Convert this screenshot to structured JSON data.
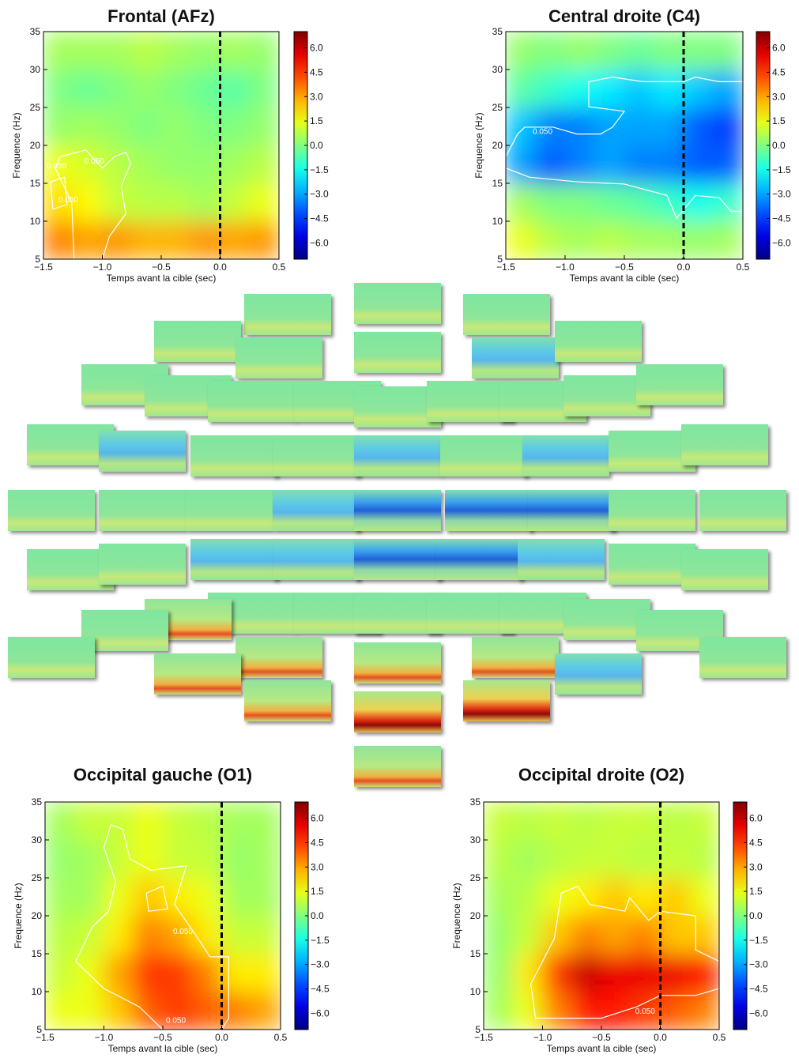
{
  "chart_data": [
    {
      "type": "heatmap",
      "title": "Frontal (AFz)",
      "xlabel": "Temps avant la cible (sec)",
      "ylabel": "Frequence (Hz)",
      "xlim": [
        -1.5,
        0.5
      ],
      "ylim": [
        5,
        35
      ],
      "xticks": [
        {
          "value": -1.5,
          "label": "−1.5"
        },
        {
          "value": -1,
          "label": "−1.0"
        },
        {
          "value": -0.5,
          "label": "−0.5"
        },
        {
          "value": 0,
          "label": "0.0"
        },
        0.5
      ],
      "yticks": [
        5,
        10,
        15,
        20,
        25,
        30,
        35
      ],
      "xbins": [
        -1.5,
        -1.25,
        -1,
        -0.75,
        -0.5,
        -0.25,
        0,
        0.25,
        0.5
      ],
      "ybins": [
        5,
        10,
        15,
        20,
        25,
        30,
        35
      ],
      "z": [
        [
          3.5,
          3,
          3.2,
          2.8,
          2.8,
          3.2,
          3,
          3.2
        ],
        [
          2.2,
          1.8,
          1,
          0.8,
          0.8,
          0.5,
          1,
          1.5
        ],
        [
          1.5,
          1.2,
          0.8,
          0.5,
          0.3,
          0.3,
          0.5,
          0.8
        ],
        [
          0.3,
          0.5,
          0.3,
          0,
          0.3,
          0,
          0,
          0.3
        ],
        [
          0,
          -0.3,
          0,
          0.3,
          0,
          -0.3,
          -0.5,
          0
        ],
        [
          0.5,
          0.5,
          0.5,
          0.8,
          0.5,
          0.3,
          0.5,
          0.3
        ]
      ],
      "clim": [
        -7,
        7
      ],
      "colormap": "jet",
      "cticks": [
        {
          "value": 6,
          "label": "6.0"
        },
        4.5,
        {
          "value": 3,
          "label": "3.0"
        },
        1.5,
        {
          "value": 0,
          "label": "0.0"
        },
        {
          "value": -1.5,
          "label": "−1.5"
        },
        {
          "value": -3,
          "label": "−3.0"
        },
        {
          "value": -4.5,
          "label": "−4.5"
        },
        {
          "value": -6,
          "label": "−6.0"
        }
      ],
      "vline": 0,
      "contour_label": "0.050"
    },
    {
      "type": "heatmap",
      "title": "Central droite (C4)",
      "xlabel": "Temps avant la cible (sec)",
      "ylabel": "Frequence (Hz)",
      "xlim": [
        -1.5,
        0.5
      ],
      "ylim": [
        5,
        35
      ],
      "xticks": [
        {
          "value": -1.5,
          "label": "−1.5"
        },
        {
          "value": -1,
          "label": "−1.0"
        },
        {
          "value": -0.5,
          "label": "−0.5"
        },
        {
          "value": 0,
          "label": "0.0"
        },
        0.5
      ],
      "yticks": [
        5,
        10,
        15,
        20,
        25,
        30,
        35
      ],
      "xbins": [
        -1.5,
        -1.25,
        -1,
        -0.75,
        -0.5,
        -0.25,
        0,
        0.25,
        0.5
      ],
      "ybins": [
        5,
        10,
        15,
        20,
        25,
        30,
        35
      ],
      "z": [
        [
          1.5,
          0.8,
          0.5,
          0.8,
          0.5,
          0.5,
          0.3,
          0.5
        ],
        [
          0.5,
          0,
          0,
          -0.3,
          -0.5,
          -1,
          -1.5,
          -1
        ],
        [
          -3,
          -4,
          -3.5,
          -3,
          -3.5,
          -3.5,
          -4,
          -4
        ],
        [
          -2.5,
          -3.5,
          -3.5,
          -3,
          -3,
          -3,
          -4,
          -4.5
        ],
        [
          -0.5,
          -1,
          -1.5,
          -2,
          -2.5,
          -2,
          -2.5,
          -3
        ],
        [
          0.3,
          0,
          0.3,
          0,
          -0.3,
          0,
          0,
          0
        ]
      ],
      "clim": [
        -7,
        7
      ],
      "colormap": "jet",
      "cticks": [
        {
          "value": 6,
          "label": "6.0"
        },
        4.5,
        {
          "value": 3,
          "label": "3.0"
        },
        1.5,
        {
          "value": 0,
          "label": "0.0"
        },
        {
          "value": -1.5,
          "label": "−1.5"
        },
        {
          "value": -3,
          "label": "−3.0"
        },
        {
          "value": -4.5,
          "label": "−4.5"
        },
        {
          "value": -6,
          "label": "−6.0"
        }
      ],
      "vline": 0,
      "contour_label": "0.050"
    },
    {
      "type": "heatmap",
      "title": "Occipital gauche (O1)",
      "xlabel": "Temps avant la cible (sec)",
      "ylabel": "Frequence (Hz)",
      "xlim": [
        -1.5,
        0.5
      ],
      "ylim": [
        5,
        35
      ],
      "xticks": [
        {
          "value": -1.5,
          "label": "−1.5"
        },
        {
          "value": -1,
          "label": "−1.0"
        },
        {
          "value": -0.5,
          "label": "−0.5"
        },
        {
          "value": 0,
          "label": "0.0"
        },
        0.5
      ],
      "yticks": [
        5,
        10,
        15,
        20,
        25,
        30,
        35
      ],
      "xbins": [
        -1.5,
        -1.25,
        -1,
        -0.75,
        -0.5,
        -0.25,
        0,
        0.25,
        0.5
      ],
      "ybins": [
        5,
        10,
        15,
        20,
        25,
        30,
        35
      ],
      "z": [
        [
          1.5,
          1.5,
          2.5,
          4,
          4.5,
          4,
          3.5,
          3
        ],
        [
          1,
          1.5,
          3,
          4.5,
          4.5,
          3.5,
          2,
          2
        ],
        [
          0.8,
          1,
          2,
          3.5,
          3,
          2,
          1,
          1
        ],
        [
          0.5,
          0.5,
          1.5,
          2.5,
          2,
          1.5,
          0.5,
          0.5
        ],
        [
          0.3,
          0.5,
          1,
          1.5,
          1,
          1,
          0.3,
          0.5
        ],
        [
          0.5,
          1,
          1,
          1.5,
          1,
          0.8,
          0.5,
          0.5
        ]
      ],
      "clim": [
        -7,
        7
      ],
      "colormap": "jet",
      "cticks": [
        {
          "value": 6,
          "label": "6.0"
        },
        4.5,
        {
          "value": 3,
          "label": "3.0"
        },
        1.5,
        {
          "value": 0,
          "label": "0.0"
        },
        {
          "value": -1.5,
          "label": "−1.5"
        },
        {
          "value": -3,
          "label": "−3.0"
        },
        {
          "value": -4.5,
          "label": "−4.5"
        },
        {
          "value": -6,
          "label": "−6.0"
        }
      ],
      "vline": 0,
      "contour_label": "0.050"
    },
    {
      "type": "heatmap",
      "title": "Occipital droite (O2)",
      "xlabel": "Temps avant la cible (sec)",
      "ylabel": "Frequence (Hz)",
      "xlim": [
        -1.5,
        0.5
      ],
      "ylim": [
        5,
        35
      ],
      "xticks": [
        {
          "value": -1.5,
          "label": "−1.5"
        },
        {
          "value": -1,
          "label": "−1.0"
        },
        {
          "value": -0.5,
          "label": "−0.5"
        },
        {
          "value": 0,
          "label": "0.0"
        },
        0.5
      ],
      "yticks": [
        5,
        10,
        15,
        20,
        25,
        30,
        35
      ],
      "xbins": [
        -1.5,
        -1.25,
        -1,
        -0.75,
        -0.5,
        -0.25,
        0,
        0.25,
        0.5
      ],
      "ybins": [
        5,
        10,
        15,
        20,
        25,
        30,
        35
      ],
      "z": [
        [
          0.5,
          1.5,
          3.5,
          5,
          5,
          4.5,
          4,
          3.5
        ],
        [
          0.3,
          2,
          4.5,
          6,
          5.5,
          5.5,
          5.5,
          5
        ],
        [
          0.3,
          1,
          2.5,
          3.5,
          3,
          3.5,
          2.5,
          2.5
        ],
        [
          0.5,
          0.8,
          1.5,
          2,
          2.5,
          2,
          2.5,
          1.5
        ],
        [
          0.8,
          0.5,
          0.8,
          1,
          1,
          0.8,
          1,
          0.8
        ],
        [
          1,
          0.8,
          1,
          0.8,
          1,
          1,
          0.8,
          1
        ]
      ],
      "clim": [
        -7,
        7
      ],
      "colormap": "jet",
      "cticks": [
        {
          "value": 6,
          "label": "6.0"
        },
        4.5,
        {
          "value": 3,
          "label": "3.0"
        },
        1.5,
        {
          "value": 0,
          "label": "0.0"
        },
        {
          "value": -1.5,
          "label": "−1.5"
        },
        {
          "value": -3,
          "label": "−3.0"
        },
        {
          "value": -4.5,
          "label": "−4.5"
        },
        {
          "value": -6,
          "label": "−6.0"
        }
      ],
      "vline": 0,
      "contour_label": "0.050"
    }
  ]
}
